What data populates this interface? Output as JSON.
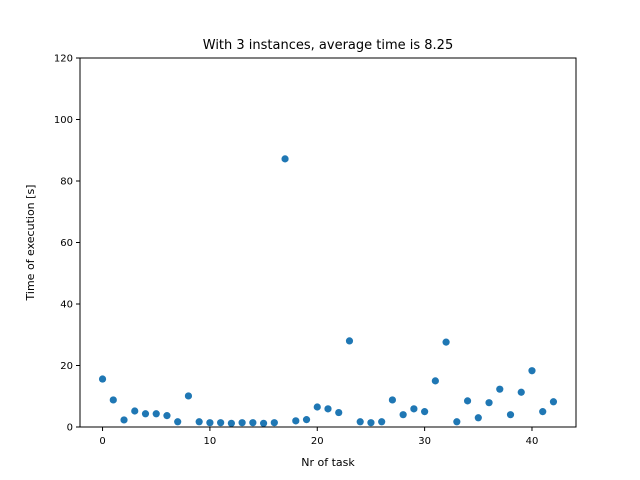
{
  "chart_data": {
    "type": "scatter",
    "title": "With 3 instances, average time is 8.25",
    "xlabel": "Nr of task",
    "ylabel": "Time of execution [s]",
    "xlim": [
      -2.1,
      44.1
    ],
    "ylim": [
      0,
      120
    ],
    "xticks": [
      0,
      10,
      20,
      30,
      40
    ],
    "yticks": [
      0,
      20,
      40,
      60,
      80,
      100,
      120
    ],
    "grid": false,
    "marker_color": "#1f77b4",
    "x": [
      0,
      1,
      2,
      3,
      4,
      5,
      6,
      7,
      8,
      9,
      10,
      11,
      12,
      13,
      14,
      15,
      16,
      17,
      18,
      19,
      20,
      21,
      22,
      23,
      24,
      25,
      26,
      27,
      28,
      29,
      30,
      31,
      32,
      33,
      34,
      35,
      36,
      37,
      38,
      39,
      40,
      41,
      42
    ],
    "y": [
      15.6,
      8.8,
      2.3,
      5.2,
      4.3,
      4.3,
      3.7,
      1.7,
      10.1,
      1.7,
      1.4,
      1.4,
      1.2,
      1.4,
      1.4,
      1.2,
      1.4,
      87.2,
      2.0,
      2.4,
      6.5,
      5.9,
      4.7,
      28.0,
      1.7,
      1.4,
      1.7,
      8.8,
      4.0,
      5.9,
      5.0,
      15.0,
      27.6,
      1.7,
      8.5,
      3.0,
      7.9,
      12.3,
      4.0,
      11.3,
      18.3,
      5.0,
      8.2
    ]
  }
}
